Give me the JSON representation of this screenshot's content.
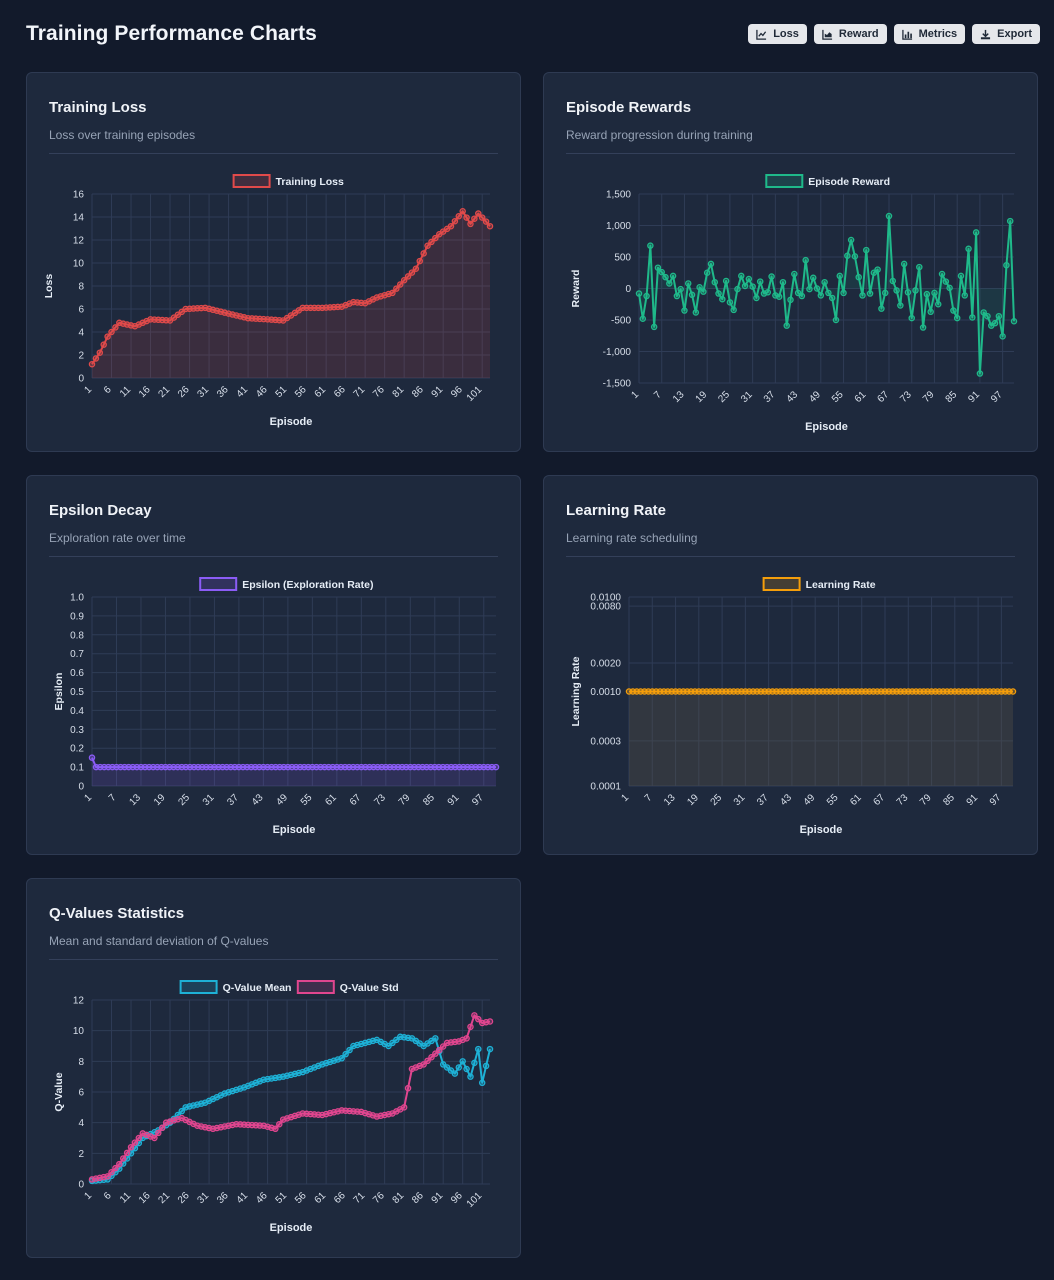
{
  "page": {
    "title": "Training Performance Charts",
    "toolbar": [
      {
        "label": "Loss",
        "icon": "line-chart-icon"
      },
      {
        "label": "Reward",
        "icon": "area-chart-icon"
      },
      {
        "label": "Metrics",
        "icon": "bar-chart-icon"
      },
      {
        "label": "Export",
        "icon": "download-icon"
      }
    ]
  },
  "cards": {
    "loss": {
      "title": "Training Loss",
      "subtitle": "Loss over training episodes"
    },
    "reward": {
      "title": "Episode Rewards",
      "subtitle": "Reward progression during training"
    },
    "epsilon": {
      "title": "Epsilon Decay",
      "subtitle": "Exploration rate over time"
    },
    "lr": {
      "title": "Learning Rate",
      "subtitle": "Learning rate scheduling"
    },
    "qvalues": {
      "title": "Q-Values Statistics",
      "subtitle": "Mean and standard deviation of Q-values"
    }
  },
  "chart_data": [
    {
      "id": "loss",
      "type": "line",
      "xlabel": "Episode",
      "ylabel": "Loss",
      "ylim": [
        0,
        16
      ],
      "yticks": [
        0,
        2,
        4,
        6,
        8,
        10,
        12,
        14,
        16
      ],
      "x_start": 1,
      "x_count": 103,
      "x_tick_step": 5,
      "grid": true,
      "legend": "top",
      "series": [
        {
          "name": "Training Loss",
          "color": "#e04a4a",
          "keyframes": [
            [
              1,
              1.2
            ],
            [
              3,
              2.2
            ],
            [
              5,
              3.6
            ],
            [
              8,
              4.8
            ],
            [
              12,
              4.5
            ],
            [
              16,
              5.1
            ],
            [
              21,
              5.0
            ],
            [
              25,
              6.0
            ],
            [
              30,
              6.1
            ],
            [
              36,
              5.6
            ],
            [
              41,
              5.2
            ],
            [
              46,
              5.1
            ],
            [
              50,
              5.0
            ],
            [
              55,
              6.1
            ],
            [
              60,
              6.1
            ],
            [
              65,
              6.2
            ],
            [
              68,
              6.6
            ],
            [
              71,
              6.5
            ],
            [
              74,
              7.0
            ],
            [
              78,
              7.4
            ],
            [
              81,
              8.5
            ],
            [
              84,
              9.5
            ],
            [
              87,
              11.5
            ],
            [
              90,
              12.5
            ],
            [
              93,
              13.2
            ],
            [
              96,
              14.5
            ],
            [
              98,
              13.4
            ],
            [
              100,
              14.3
            ],
            [
              102,
              13.6
            ],
            [
              103,
              13.2
            ]
          ]
        }
      ]
    },
    {
      "id": "reward",
      "type": "line",
      "xlabel": "Episode",
      "ylabel": "Reward",
      "ylim": [
        -1500,
        1500
      ],
      "yticks": [
        -1500,
        -1000,
        -500,
        0,
        500,
        1000,
        1500
      ],
      "ytick_labels": [
        "-1,500",
        "-1,000",
        "-500",
        "0",
        "500",
        "1,000",
        "1,500"
      ],
      "x_start": 1,
      "x_count": 100,
      "x_tick_step": 6,
      "grid": true,
      "legend": "top",
      "series": [
        {
          "name": "Episode Reward",
          "color": "#1fb98a",
          "values": [
            -80,
            -480,
            -120,
            680,
            -610,
            330,
            260,
            180,
            80,
            200,
            -120,
            -10,
            -350,
            80,
            -100,
            -380,
            20,
            -50,
            250,
            390,
            100,
            -80,
            -170,
            120,
            -220,
            -340,
            -10,
            200,
            40,
            150,
            30,
            -150,
            110,
            -80,
            -60,
            190,
            -110,
            -130,
            100,
            -590,
            -180,
            230,
            -70,
            -120,
            450,
            -10,
            170,
            0,
            -110,
            100,
            -70,
            -150,
            -500,
            200,
            -70,
            520,
            770,
            510,
            180,
            -110,
            610,
            -80,
            250,
            300,
            -320,
            -70,
            1150,
            120,
            -30,
            -270,
            390,
            -60,
            -470,
            -30,
            340,
            -620,
            -90,
            -370,
            -70,
            -250,
            230,
            110,
            10,
            -350,
            -470,
            200,
            -110,
            630,
            -460,
            890,
            -1350,
            -380,
            -440,
            -590,
            -550,
            -440,
            -760,
            370,
            1070,
            -520
          ]
        }
      ]
    },
    {
      "id": "epsilon",
      "type": "line",
      "xlabel": "Episode",
      "ylabel": "Epsilon",
      "ylim": [
        0,
        1.0
      ],
      "yticks": [
        0,
        0.1,
        0.2,
        0.3,
        0.4,
        0.5,
        0.6,
        0.7,
        0.8,
        0.9,
        1.0
      ],
      "ytick_labels": [
        "0",
        "0.1",
        "0.2",
        "0.3",
        "0.4",
        "0.5",
        "0.6",
        "0.7",
        "0.8",
        "0.9",
        "1.0"
      ],
      "x_start": 1,
      "x_count": 100,
      "x_tick_step": 6,
      "grid": true,
      "legend": "top",
      "series": [
        {
          "name": "Epsilon (Exploration Rate)",
          "color": "#8b5cf6",
          "first": 0.15,
          "rest": 0.1
        }
      ]
    },
    {
      "id": "lr",
      "type": "line",
      "scale": "log",
      "xlabel": "Episode",
      "ylabel": "Learning Rate",
      "ylim": [
        0.0001,
        0.01
      ],
      "yticks": [
        0.0001,
        0.0003,
        0.001,
        0.002,
        0.008,
        0.01
      ],
      "ytick_labels": [
        "0.0001",
        "0.0003",
        "0.0010",
        "0.0020",
        "0.0080",
        "0.0100"
      ],
      "x_start": 1,
      "x_count": 100,
      "x_tick_step": 6,
      "grid": true,
      "legend": "top",
      "series": [
        {
          "name": "Learning Rate",
          "color": "#f59e0b",
          "constant": 0.001
        }
      ]
    },
    {
      "id": "qvalues",
      "type": "line",
      "xlabel": "Episode",
      "ylabel": "Q-Value",
      "ylim": [
        0,
        12
      ],
      "yticks": [
        0,
        2,
        4,
        6,
        8,
        10,
        12
      ],
      "x_start": 1,
      "x_count": 103,
      "x_tick_step": 5,
      "grid": true,
      "legend": "top",
      "series": [
        {
          "name": "Q-Value Mean",
          "color": "#1eb1d6",
          "keyframes": [
            [
              1,
              0.2
            ],
            [
              5,
              0.3
            ],
            [
              8,
              1.0
            ],
            [
              11,
              2.0
            ],
            [
              14,
              3.0
            ],
            [
              18,
              3.5
            ],
            [
              21,
              4.0
            ],
            [
              25,
              5.0
            ],
            [
              30,
              5.3
            ],
            [
              35,
              5.9
            ],
            [
              40,
              6.3
            ],
            [
              45,
              6.8
            ],
            [
              50,
              7.0
            ],
            [
              55,
              7.3
            ],
            [
              60,
              7.8
            ],
            [
              65,
              8.2
            ],
            [
              68,
              9.0
            ],
            [
              71,
              9.2
            ],
            [
              74,
              9.4
            ],
            [
              77,
              9.0
            ],
            [
              80,
              9.6
            ],
            [
              83,
              9.5
            ],
            [
              86,
              9.0
            ],
            [
              89,
              9.5
            ],
            [
              91,
              7.8
            ],
            [
              94,
              7.2
            ],
            [
              96,
              8.0
            ],
            [
              98,
              7.0
            ],
            [
              100,
              8.8
            ],
            [
              101,
              6.6
            ],
            [
              103,
              8.8
            ]
          ]
        },
        {
          "name": "Q-Value Std",
          "color": "#e0468f",
          "keyframes": [
            [
              1,
              0.3
            ],
            [
              5,
              0.5
            ],
            [
              8,
              1.3
            ],
            [
              11,
              2.4
            ],
            [
              14,
              3.3
            ],
            [
              17,
              3.0
            ],
            [
              20,
              4.0
            ],
            [
              24,
              4.3
            ],
            [
              28,
              3.8
            ],
            [
              32,
              3.6
            ],
            [
              38,
              3.9
            ],
            [
              45,
              3.8
            ],
            [
              48,
              3.6
            ],
            [
              50,
              4.2
            ],
            [
              55,
              4.6
            ],
            [
              60,
              4.5
            ],
            [
              65,
              4.8
            ],
            [
              70,
              4.7
            ],
            [
              74,
              4.4
            ],
            [
              78,
              4.6
            ],
            [
              81,
              5.0
            ],
            [
              83,
              7.5
            ],
            [
              86,
              7.8
            ],
            [
              89,
              8.5
            ],
            [
              92,
              9.2
            ],
            [
              95,
              9.3
            ],
            [
              97,
              9.5
            ],
            [
              99,
              11.0
            ],
            [
              101,
              10.5
            ],
            [
              103,
              10.6
            ]
          ]
        }
      ]
    }
  ]
}
